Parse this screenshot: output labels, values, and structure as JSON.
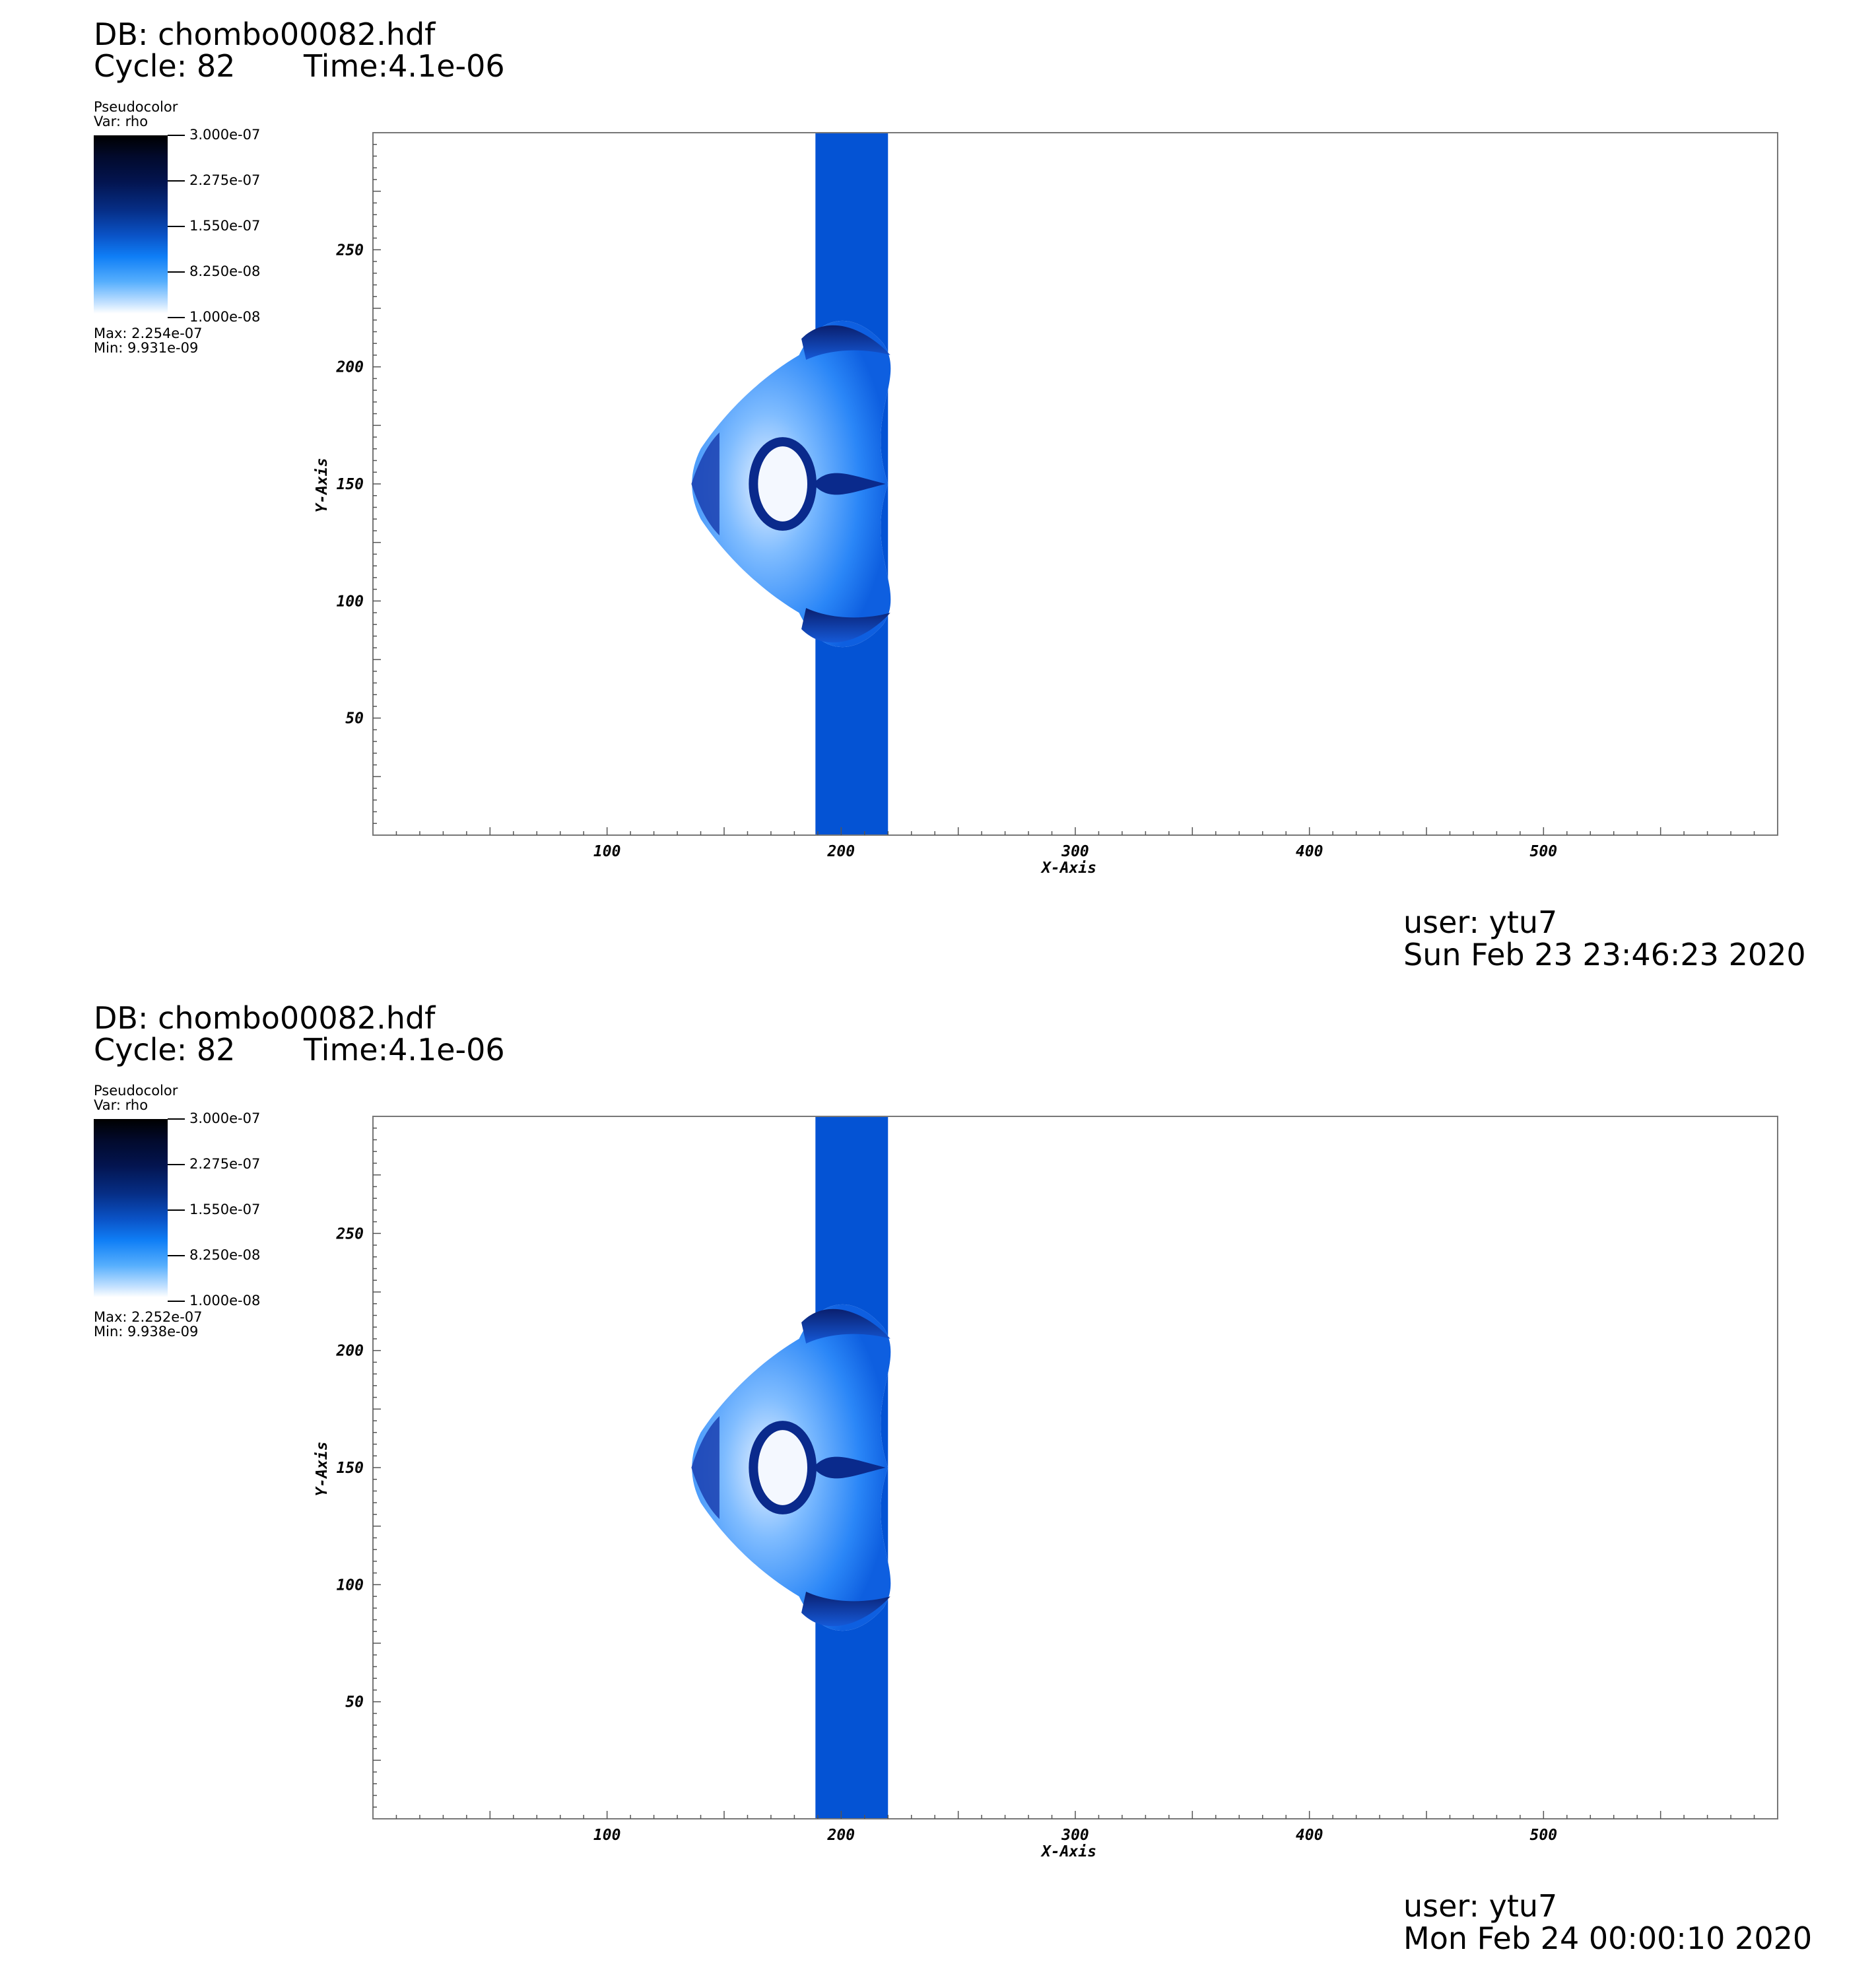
{
  "panels": [
    {
      "db": "DB: chombo00082.hdf",
      "cycle": "Cycle: 82",
      "time": "Time:4.1e-06",
      "legend": {
        "title": "Pseudocolor",
        "var": "Var: rho",
        "ticks": [
          "3.000e-07",
          "2.275e-07",
          "1.550e-07",
          "8.250e-08",
          "1.000e-08"
        ],
        "max": "Max:  2.254e-07",
        "min": "Min:  9.931e-09"
      },
      "user": "user: ytu7",
      "date": "Sun Feb 23 23:46:23 2020"
    },
    {
      "db": "DB: chombo00082.hdf",
      "cycle": "Cycle: 82",
      "time": "Time:4.1e-06",
      "legend": {
        "title": "Pseudocolor",
        "var": "Var: rho",
        "ticks": [
          "3.000e-07",
          "2.275e-07",
          "1.550e-07",
          "8.250e-08",
          "1.000e-08"
        ],
        "max": "Max:  2.252e-07",
        "min": "Min:  9.938e-09"
      },
      "user": "user: ytu7",
      "date": "Mon Feb 24 00:00:10 2020"
    }
  ],
  "chart_data": [
    {
      "type": "heatmap",
      "xlabel": "X-Axis",
      "ylabel": "Y-Axis",
      "xlim": [
        0,
        600
      ],
      "ylim": [
        0,
        300
      ],
      "x_ticks": [
        100,
        200,
        300,
        400,
        500
      ],
      "y_ticks": [
        50,
        100,
        150,
        200,
        250
      ],
      "variable": "rho",
      "colorbar_range": [
        1e-08,
        3e-07
      ],
      "slab_x_range": [
        189,
        220
      ],
      "slab_rho_level": 1.3e-07,
      "bubble_center_y": 150
    },
    {
      "type": "heatmap",
      "xlabel": "X-Axis",
      "ylabel": "Y-Axis",
      "xlim": [
        0,
        600
      ],
      "ylim": [
        0,
        300
      ],
      "x_ticks": [
        100,
        200,
        300,
        400,
        500
      ],
      "y_ticks": [
        50,
        100,
        150,
        200,
        250
      ],
      "variable": "rho",
      "colorbar_range": [
        1e-08,
        3e-07
      ],
      "slab_x_range": [
        189,
        220
      ],
      "slab_rho_level": 1.3e-07,
      "bubble_center_y": 150
    }
  ]
}
